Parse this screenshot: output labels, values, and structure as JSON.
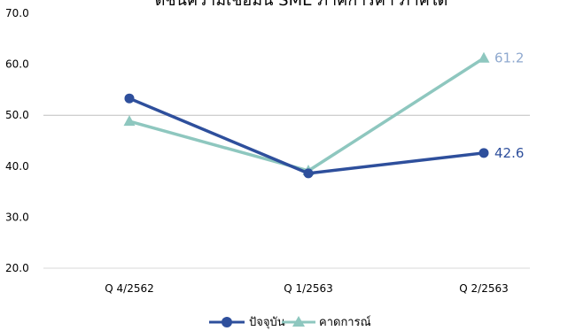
{
  "chart_data": {
    "type": "line",
    "title": "ดัชนีความเชื่อมั่น SME ภาคการค้า ภาคใต้",
    "xlabel": "",
    "ylabel": "",
    "categories": [
      "Q 4/2562",
      "Q 1/2563",
      "Q 2/2563"
    ],
    "ylim": [
      20,
      70
    ],
    "yticks": [
      "20.0",
      "30.0",
      "40.0",
      "50.0",
      "60.0",
      "70.0"
    ],
    "reference_line": 50,
    "grid": false,
    "legend_position": "bottom",
    "series": [
      {
        "name": "ปัจจุบัน",
        "values": [
          53.3,
          38.6,
          42.6
        ],
        "color": "#2e4f9c",
        "marker": "circle",
        "last_label": "42.6"
      },
      {
        "name": "คาดการณ์",
        "values": [
          48.8,
          39.1,
          61.2
        ],
        "color": "#8ec7bf",
        "marker": "triangle",
        "last_label": "61.2"
      }
    ]
  },
  "colors": {
    "reference_line": "#bfbfbf",
    "axis": "#d9d9d9",
    "label_current": "#2e4f9c",
    "label_forecast": "#8fa9cf"
  }
}
